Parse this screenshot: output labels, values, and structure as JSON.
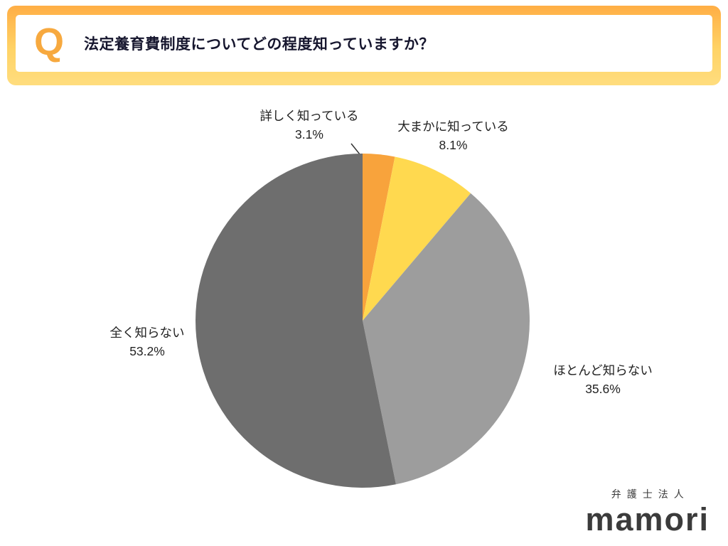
{
  "header": {
    "q_mark": "Q",
    "title": "法定養育費制度についてどの程度知っていますか？"
  },
  "chart_data": {
    "type": "pie",
    "title": "法定養育費制度についてどの程度知っていますか？",
    "start_angle_deg": 0,
    "direction": "clockwise",
    "total": 100,
    "legend_position": "none",
    "labels_outside": true,
    "slices": [
      {
        "label": "詳しく知っている",
        "value": 3.1,
        "pct_label": "3.1%",
        "color": "#F8A33C"
      },
      {
        "label": "大まかに知っている",
        "value": 8.1,
        "pct_label": "8.1%",
        "color": "#FFD94F"
      },
      {
        "label": "ほとんど知らない",
        "value": 35.6,
        "pct_label": "35.6%",
        "color": "#9D9D9D"
      },
      {
        "label": "全く知らない",
        "value": 53.2,
        "pct_label": "53.2%",
        "color": "#6E6E6E"
      }
    ]
  },
  "logo": {
    "firm_type": "弁護士法人",
    "name": "mamori"
  },
  "colors": {
    "accent_orange": "#F7A93F",
    "frame_top": "#FFAE45",
    "frame_bottom": "#FFDD7E",
    "title_text": "#16162E",
    "label_text": "#222222",
    "logo_text": "#3B3B3B"
  }
}
